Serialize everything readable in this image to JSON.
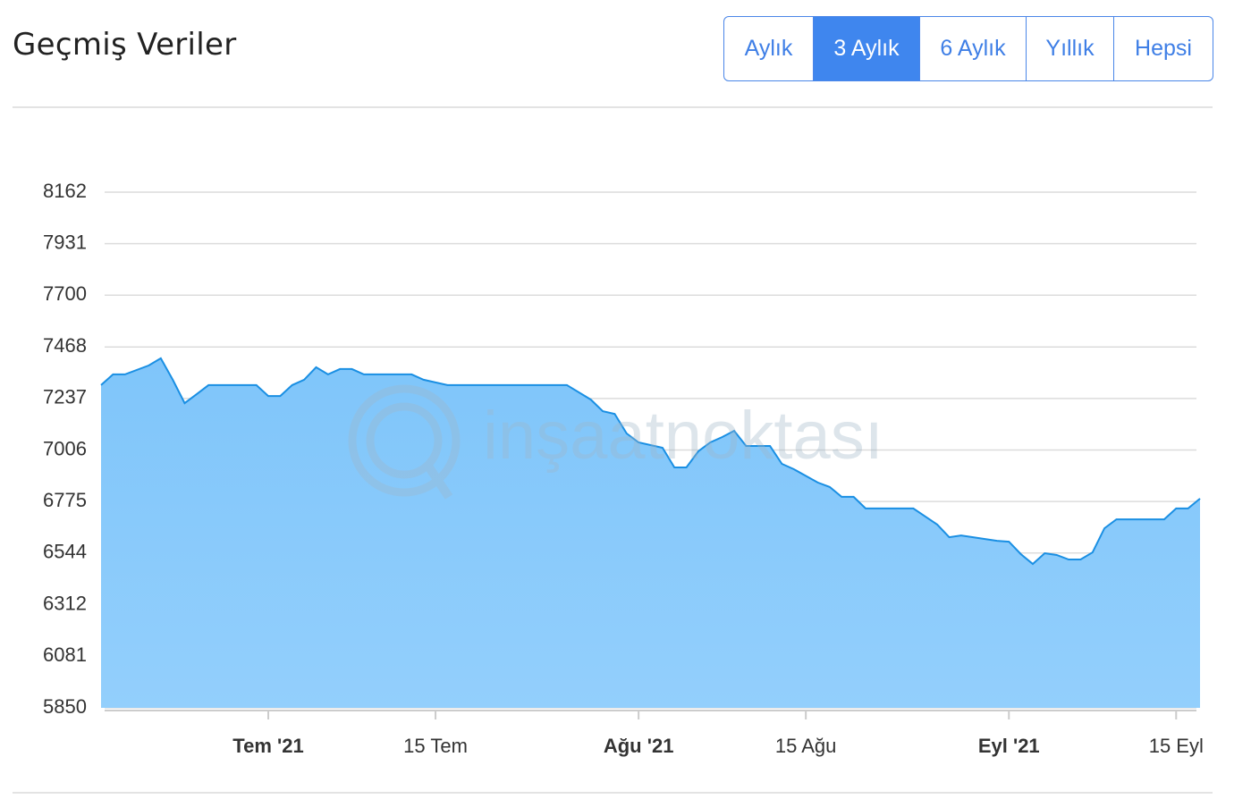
{
  "header": {
    "title": "Geçmiş Veriler",
    "buttons": [
      "Aylık",
      "3 Aylık",
      "6 Aylık",
      "Yıllık",
      "Hepsi"
    ],
    "active": 1
  },
  "chart_data": {
    "type": "area",
    "watermark": "inşaatnoktası",
    "color": "#1a8fe3",
    "fill": "#86c9fb",
    "x": [
      "2021-06-17",
      "2021-06-18",
      "2021-06-19",
      "2021-06-21",
      "2021-06-22",
      "2021-06-23",
      "2021-06-24",
      "2021-06-25",
      "2021-06-26",
      "2021-06-30",
      "2021-07-01",
      "2021-07-02",
      "2021-07-03",
      "2021-07-04",
      "2021-07-05",
      "2021-07-06",
      "2021-07-07",
      "2021-07-08",
      "2021-07-09",
      "2021-07-13",
      "2021-07-14",
      "2021-07-15",
      "2021-07-16",
      "2021-07-26",
      "2021-07-28",
      "2021-07-29",
      "2021-07-30",
      "2021-07-31",
      "2021-08-01",
      "2021-08-03",
      "2021-08-04",
      "2021-08-05",
      "2021-08-06",
      "2021-08-07",
      "2021-08-08",
      "2021-08-09",
      "2021-08-10",
      "2021-08-12",
      "2021-08-13",
      "2021-08-14",
      "2021-08-16",
      "2021-08-17",
      "2021-08-18",
      "2021-08-19",
      "2021-08-20",
      "2021-08-24",
      "2021-08-25",
      "2021-08-26",
      "2021-08-27",
      "2021-08-28",
      "2021-08-29",
      "2021-08-31",
      "2021-09-01",
      "2021-09-02",
      "2021-09-03",
      "2021-09-04",
      "2021-09-05",
      "2021-09-06",
      "2021-09-07",
      "2021-09-08",
      "2021-09-09",
      "2021-09-10",
      "2021-09-14",
      "2021-09-15",
      "2021-09-16",
      "2021-09-17"
    ],
    "values": [
      7297,
      7345,
      7345,
      7385,
      7417,
      7321,
      7216,
      7256,
      7297,
      7297,
      7248,
      7248,
      7297,
      7321,
      7377,
      7345,
      7369,
      7369,
      7345,
      7345,
      7321,
      7309,
      7297,
      7297,
      7232,
      7180,
      7168,
      7080,
      7040,
      7016,
      6928,
      6928,
      7000,
      7040,
      7064,
      7092,
      7024,
      7024,
      6944,
      6920,
      6860,
      6840,
      6796,
      6796,
      6744,
      6744,
      6708,
      6672,
      6615,
      6623,
      6615,
      6599,
      6595,
      6539,
      6495,
      6543,
      6535,
      6515,
      6515,
      6547,
      6655,
      6695,
      6695,
      6744,
      6744,
      6788
    ],
    "xlim": [
      "2021-06-17",
      "2021-09-17"
    ],
    "xticks": [
      {
        "value": "2021-07-01",
        "label": "Tem '21",
        "bold": true
      },
      {
        "value": "2021-07-15",
        "label": "15 Tem"
      },
      {
        "value": "2021-08-01",
        "label": "Ağu '21",
        "bold": true
      },
      {
        "value": "2021-08-15",
        "label": "15 Ağu"
      },
      {
        "value": "2021-09-01",
        "label": "Eyl '21",
        "bold": true
      },
      {
        "value": "2021-09-15",
        "label": "15 Eyl"
      }
    ],
    "ylim": [
      5850,
      8162
    ],
    "yticks": [
      5850,
      6081,
      6312,
      6544,
      6775,
      7006,
      7237,
      7468,
      7700,
      7931,
      8162
    ],
    "grid": true
  }
}
